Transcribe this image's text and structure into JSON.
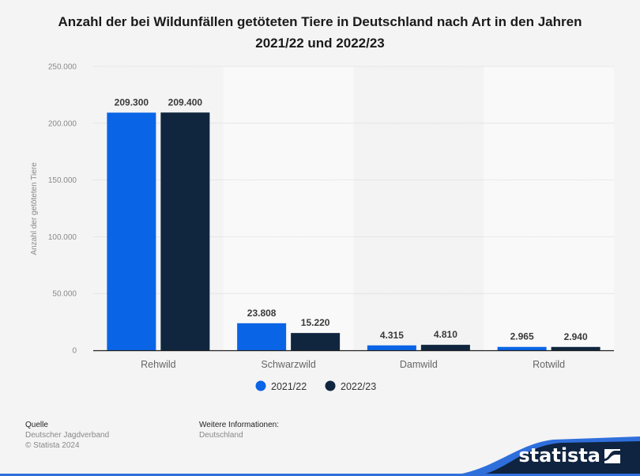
{
  "title": "Anzahl der bei Wildunfällen getöteten Tiere in Deutschland nach Art in den Jahren 2021/22 und 2022/23",
  "chart_data": {
    "type": "bar",
    "title": "Anzahl der bei Wildunfällen getöteten Tiere in Deutschland nach Art in den Jahren 2021/22 und 2022/23",
    "xlabel": "",
    "ylabel": "Anzahl der getöteten Tiere",
    "ylim": [
      0,
      250000
    ],
    "yticks": [
      0,
      50000,
      100000,
      150000,
      200000,
      250000
    ],
    "ytick_labels": [
      "0",
      "50.000",
      "100.000",
      "150.000",
      "200.000",
      "250.000"
    ],
    "grid": true,
    "categories": [
      "Rehwild",
      "Schwarzwild",
      "Damwild",
      "Rotwild"
    ],
    "series": [
      {
        "name": "2021/22",
        "color": "#0a64e6",
        "values": [
          209300,
          23808,
          4315,
          2965
        ],
        "labels": [
          "209.300",
          "23.808",
          "4.315",
          "2.965"
        ]
      },
      {
        "name": "2022/23",
        "color": "#10263f",
        "values": [
          209400,
          15220,
          4810,
          2940
        ],
        "labels": [
          "209.400",
          "15.220",
          "4.810",
          "2.940"
        ]
      }
    ],
    "legend_position": "bottom-center"
  },
  "footer": {
    "source_heading": "Quelle",
    "source": "Deutscher Jagdverband",
    "copyright": "© Statista 2024",
    "info_heading": "Weitere Informationen:",
    "info": "Deutschland"
  },
  "brand": {
    "name": "statista",
    "dark_color": "#0f2440",
    "accent_color": "#2f6fdc"
  }
}
